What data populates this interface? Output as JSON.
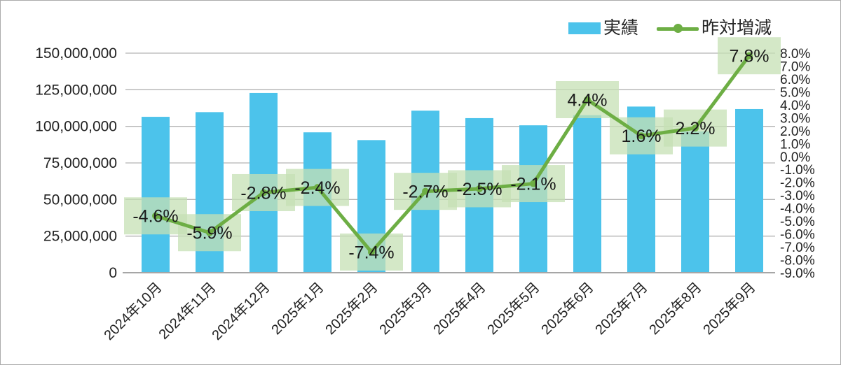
{
  "legend": {
    "items": [
      {
        "label": "実績",
        "type": "bar"
      },
      {
        "label": "昨対増減",
        "type": "line"
      }
    ]
  },
  "colors": {
    "bar": "#4CC3EB",
    "line": "#6DAE44",
    "label_bg_rgba": "rgba(198,224,180,0.75)",
    "grid": "#B3B3B3",
    "axis_line": "#A6A6A6",
    "text": "#222222",
    "label_text": "#1A1A1A",
    "border": "#ABABAB"
  },
  "chart_data": {
    "type": "combo",
    "title": "",
    "grid": true,
    "legend_position": "top-right",
    "categories": [
      "2024年10月",
      "2024年11月",
      "2024年12月",
      "2025年1月",
      "2025年2月",
      "2025年3月",
      "2025年4月",
      "2025年5月",
      "2025年6月",
      "2025年7月",
      "2025年8月",
      "2025年9月"
    ],
    "series": [
      {
        "name": "実績",
        "type": "bar",
        "axis": "left",
        "values": [
          106500000,
          109700000,
          122800000,
          95900000,
          90600000,
          110700000,
          105600000,
          100700000,
          107600000,
          113500000,
          96500000,
          111800000
        ]
      },
      {
        "name": "昨対増減",
        "type": "line",
        "axis": "right",
        "values": [
          -4.6,
          -5.9,
          -2.8,
          -2.4,
          -7.4,
          -2.7,
          -2.5,
          -2.1,
          4.4,
          1.6,
          2.2,
          7.8
        ],
        "point_labels": [
          "-4.6%",
          "-5.9%",
          "-2.8%",
          "-2.4%",
          "-7.4%",
          "-2.7%",
          "-2.5%",
          "-2.1%",
          "4.4%",
          "1.6%",
          "2.2%",
          "7.8%"
        ]
      }
    ],
    "left_axis": {
      "min": 0,
      "max": 150000000,
      "step": 25000000,
      "tick_labels": [
        "150,000,000",
        "125,000,000",
        "100,000,000",
        "75,000,000",
        "50,000,000",
        "25,000,000",
        "0"
      ]
    },
    "right_axis": {
      "min": -9,
      "max": 8,
      "step": 1,
      "tick_labels": [
        "8.0%",
        "7.0%",
        "6.0%",
        "5.0%",
        "4.0%",
        "3.0%",
        "2.0%",
        "1.0%",
        "0.0%",
        "-1.0%",
        "-2.0%",
        "-3.0%",
        "-4.0%",
        "-5.0%",
        "-6.0%",
        "-7.0%",
        "-8.0%",
        "-9.0%"
      ]
    }
  }
}
